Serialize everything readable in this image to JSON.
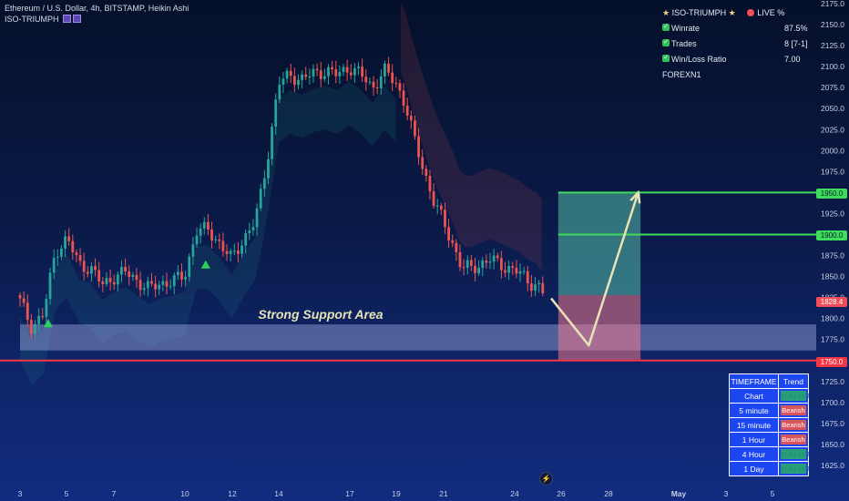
{
  "header": {
    "symbol_line": "Ethereum / U.S. Dollar, 4h, BITSTAMP, Heikin Ashi",
    "indicator_name": "ISO-TRIUMPH"
  },
  "stats_panel": {
    "title": "ISO-TRIUMPH",
    "live_label": "LIVE %",
    "rows": [
      {
        "label": "Winrate",
        "value": "87.5%"
      },
      {
        "label": "Trades",
        "value": "8 [7-1]"
      },
      {
        "label": "Win/Loss Ratio",
        "value": "7.00"
      }
    ],
    "brand": "FOREXN1"
  },
  "timeframe_table": {
    "headers": [
      "TIMEFRAME",
      "Trend"
    ],
    "rows": [
      {
        "timeframe": "Chart",
        "trend": "BULLISH",
        "state": "bull"
      },
      {
        "timeframe": "5 minute",
        "trend": "Bearish",
        "state": "bear"
      },
      {
        "timeframe": "15 minute",
        "trend": "Bearish",
        "state": "bear"
      },
      {
        "timeframe": "1 Hour",
        "trend": "Bearish",
        "state": "bear"
      },
      {
        "timeframe": "4 Hour",
        "trend": "BULLISH",
        "state": "bull"
      },
      {
        "timeframe": "1 Day",
        "trend": "BULLISH",
        "state": "bull"
      }
    ]
  },
  "price_tags": {
    "target_1": "1950.0",
    "target_2": "1900.0",
    "current": "1828.4",
    "support": "1750.0"
  },
  "annotations": {
    "support_area": "Strong Support Area"
  },
  "colors": {
    "bull": "#26a69a",
    "bear": "#ef5350",
    "target_line": "#3ddc5a",
    "support_line": "#f23645",
    "arrow": "#e8e2b5"
  },
  "chart_data": {
    "type": "candlestick",
    "title": "Ethereum / U.S. Dollar, 4h, BITSTAMP, Heikin Ashi",
    "ylim": [
      1605,
      2180
    ],
    "y_ticks": [
      1625,
      1650,
      1675,
      1700,
      1725,
      1750,
      1775,
      1800,
      1825,
      1850,
      1875,
      1900,
      1925,
      1950,
      1975,
      2000,
      2025,
      2050,
      2075,
      2100,
      2125,
      2150,
      2175
    ],
    "x_ticks": [
      "3",
      "5",
      "7",
      "10",
      "12",
      "14",
      "17",
      "19",
      "21",
      "24",
      "26",
      "28",
      "May",
      "3",
      "5"
    ],
    "close_path": [
      [
        3.0,
        1820
      ],
      [
        3.5,
        1790
      ],
      [
        4.0,
        1805
      ],
      [
        4.5,
        1880
      ],
      [
        5.0,
        1895
      ],
      [
        5.5,
        1865
      ],
      [
        6.0,
        1860
      ],
      [
        6.5,
        1840
      ],
      [
        7.0,
        1850
      ],
      [
        7.5,
        1855
      ],
      [
        8.0,
        1845
      ],
      [
        8.5,
        1835
      ],
      [
        9.0,
        1842
      ],
      [
        9.5,
        1845
      ],
      [
        10.0,
        1850
      ],
      [
        10.5,
        1905
      ],
      [
        11.0,
        1905
      ],
      [
        11.5,
        1890
      ],
      [
        12.0,
        1870
      ],
      [
        12.5,
        1895
      ],
      [
        13.0,
        1915
      ],
      [
        13.3,
        1955
      ],
      [
        13.6,
        2005
      ],
      [
        14.0,
        2080
      ],
      [
        14.5,
        2090
      ],
      [
        15.0,
        2085
      ],
      [
        15.5,
        2092
      ],
      [
        16.0,
        2095
      ],
      [
        16.5,
        2090
      ],
      [
        17.0,
        2100
      ],
      [
        17.5,
        2090
      ],
      [
        18.0,
        2075
      ],
      [
        18.5,
        2095
      ],
      [
        19.0,
        2080
      ],
      [
        19.4,
        2055
      ],
      [
        19.8,
        2010
      ],
      [
        20.2,
        1975
      ],
      [
        20.6,
        1940
      ],
      [
        21.0,
        1915
      ],
      [
        21.4,
        1890
      ],
      [
        21.8,
        1860
      ],
      [
        22.2,
        1860
      ],
      [
        22.6,
        1865
      ],
      [
        23.0,
        1870
      ],
      [
        23.4,
        1865
      ],
      [
        23.8,
        1860
      ],
      [
        24.2,
        1855
      ],
      [
        24.6,
        1845
      ],
      [
        25.0,
        1840
      ],
      [
        25.3,
        1828
      ]
    ],
    "buy_signals_x": [
      4.2,
      10.9
    ],
    "support_zone": [
      1762,
      1793
    ],
    "levels": [
      {
        "label": "1950.0",
        "value": 1950
      },
      {
        "label": "1900.0",
        "value": 1900
      },
      {
        "label": "1750.0",
        "value": 1750
      }
    ],
    "current_price": 1828.4,
    "projection": {
      "box_x": [
        25.9,
        29.4
      ],
      "box_top": 1950,
      "box_bottom": 1750,
      "entry": 1828,
      "path": [
        [
          25.6,
          1824
        ],
        [
          27.2,
          1768
        ],
        [
          29.3,
          1950
        ]
      ]
    }
  }
}
